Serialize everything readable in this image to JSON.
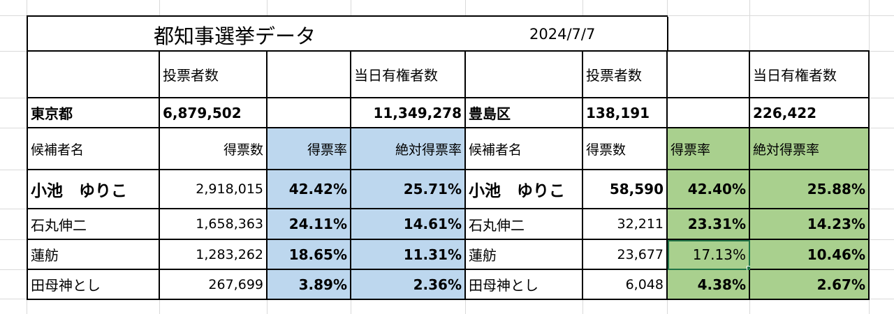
{
  "title": "都知事選挙データ",
  "date": "2024/7/7",
  "header": {
    "tokyo_voters_label": "投票者数",
    "tokyo_eligible_label": "当日有権者数",
    "ward_voters_label": "投票者数",
    "ward_eligible_label": "当日有権者数"
  },
  "totals": {
    "tokyo_label": "東京都",
    "tokyo_voters": "6,879,502",
    "tokyo_eligible": "11,349,278",
    "ward_label": "豊島区",
    "ward_voters": "138,191",
    "ward_eligible": "226,422"
  },
  "columns": {
    "candidate": "候補者名",
    "votes": "得票数",
    "rate": "得票率",
    "abs_rate": "絶対得票率"
  },
  "rows": [
    {
      "name": "小池　ゆりこ",
      "tokyo_votes": "2,918,015",
      "tokyo_rate": "42.42%",
      "tokyo_abs": "25.71%",
      "ward_votes": "58,590",
      "ward_rate": "42.40%",
      "ward_abs": "25.88%"
    },
    {
      "name": "石丸伸二",
      "tokyo_votes": "1,658,363",
      "tokyo_rate": "24.11%",
      "tokyo_abs": "14.61%",
      "ward_votes": "32,211",
      "ward_rate": "23.31%",
      "ward_abs": "14.23%"
    },
    {
      "name": "蓮舫",
      "tokyo_votes": "1,283,262",
      "tokyo_rate": "18.65%",
      "tokyo_abs": "11.31%",
      "ward_votes": "23,677",
      "ward_rate": "17.13%",
      "ward_abs": "10.46%"
    },
    {
      "name": "田母神とし",
      "tokyo_votes": "267,699",
      "tokyo_rate": "3.89%",
      "tokyo_abs": "2.36%",
      "ward_votes": "6,048",
      "ward_rate": "4.38%",
      "ward_abs": "2.67%"
    }
  ],
  "colors": {
    "tokyo_rate_fill": "#bdd7ee",
    "ward_rate_fill": "#a9d08e",
    "gridline": "#d9d9d9",
    "border": "#000000",
    "selection": "#217346"
  }
}
